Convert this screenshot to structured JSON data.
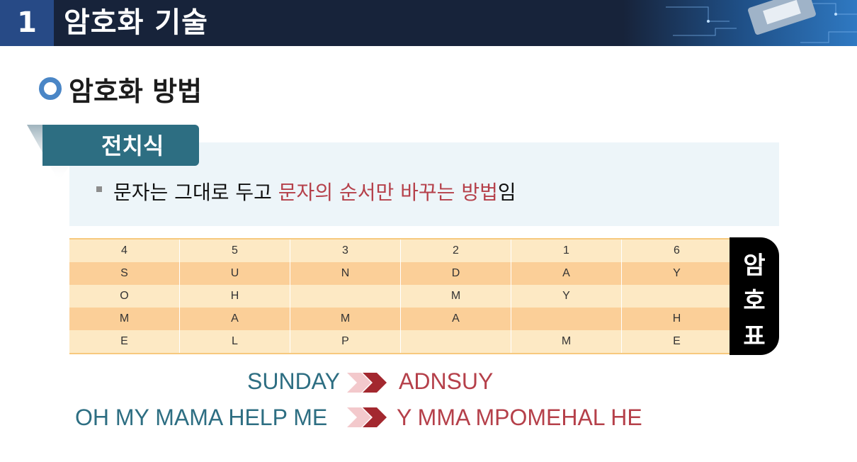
{
  "header": {
    "number": "1",
    "title": "암호화 기술"
  },
  "section": {
    "title": "암호화 방법"
  },
  "concept": {
    "tab_label": "전치식",
    "text_plain": "문자는 그대로 두고 ",
    "text_highlight": "문자의 순서만 바꾸는 방법",
    "text_end": "임"
  },
  "table": {
    "key_label": [
      "암",
      "호",
      "표"
    ],
    "rows": [
      [
        "4",
        "5",
        "3",
        "2",
        "1",
        "6"
      ],
      [
        "S",
        "U",
        "N",
        "D",
        "A",
        "Y"
      ],
      [
        "O",
        "H",
        "",
        "M",
        "Y",
        ""
      ],
      [
        "M",
        "A",
        "M",
        "A",
        "",
        "H"
      ],
      [
        "E",
        "L",
        "P",
        "",
        "M",
        "E"
      ]
    ]
  },
  "examples": [
    {
      "plain": "SUNDAY",
      "cipher": "ADNSUY"
    },
    {
      "plain": "OH MY MAMA HELP ME",
      "cipher": "Y MMA MPOMEHAL HE"
    }
  ],
  "colors": {
    "accent_teal": "#2d6e82",
    "accent_red": "#b5404a",
    "header_bg": "#17233a",
    "number_bg": "#274a86"
  }
}
